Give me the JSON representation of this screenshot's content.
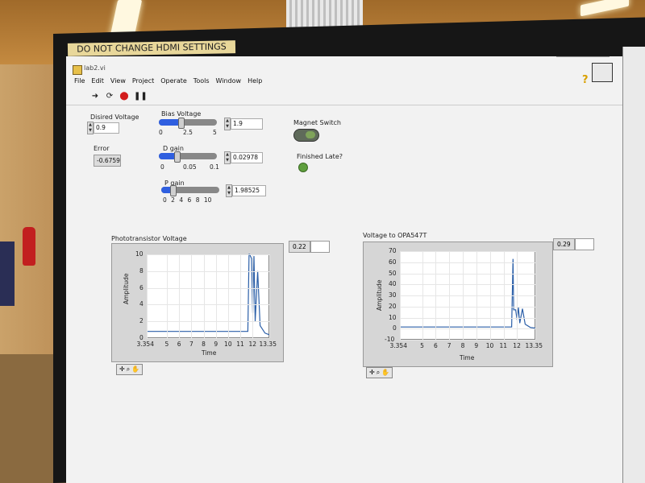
{
  "sticker": "DO NOT CHANGE HDMI SETTINGS",
  "window": {
    "title": "lab2.vi"
  },
  "menu": [
    "File",
    "Edit",
    "View",
    "Project",
    "Operate",
    "Tools",
    "Window",
    "Help"
  ],
  "toolbar": {
    "icons": [
      "run-arrow-icon",
      "run-continuous-icon",
      "abort-icon",
      "pause-icon"
    ]
  },
  "controls": {
    "desired_voltage": {
      "label": "Disired Voltage",
      "value": "0.9"
    },
    "error": {
      "label": "Error",
      "value": "-0.6759"
    },
    "bias_voltage": {
      "label": "Bias Voltage",
      "value": "1.9",
      "ticks": [
        "0",
        "2.5",
        "5"
      ],
      "fraction": 0.38
    },
    "d_gain": {
      "label": "D gain",
      "value": "0.02978",
      "ticks": [
        "0",
        "0.05",
        "0.1"
      ],
      "fraction": 0.3
    },
    "p_gain": {
      "label": "P gain",
      "value": "1.98525",
      "ticks": [
        "0",
        "2",
        "4",
        "6",
        "8",
        "10"
      ],
      "fraction": 0.2
    },
    "magnet_switch": {
      "label": "Magnet Switch",
      "on": true
    },
    "finished_late": {
      "label": "Finished Late?"
    }
  },
  "graphs": [
    {
      "title": "Phototransistor Voltage",
      "legend_value": "0.22",
      "xlabel": "Time",
      "ylabel": "Amplitude",
      "xticks": [
        "3.354",
        "5",
        "6",
        "7",
        "8",
        "9",
        "10",
        "11",
        "12",
        "13.35"
      ],
      "yticks": [
        "10",
        "8",
        "6",
        "4",
        "2",
        "0"
      ]
    },
    {
      "title": "Voltage to OPA547T",
      "legend_value": "0.29",
      "xlabel": "Time",
      "ylabel": "Amplitude",
      "xticks": [
        "3.354",
        "5",
        "6",
        "7",
        "8",
        "9",
        "10",
        "11",
        "12",
        "13.35"
      ],
      "yticks": [
        "70",
        "60",
        "50",
        "40",
        "30",
        "20",
        "10",
        "0",
        "-10"
      ]
    }
  ],
  "chart_data": [
    {
      "type": "line",
      "title": "Phototransistor Voltage",
      "xlabel": "Time",
      "ylabel": "Amplitude",
      "xlim": [
        3.354,
        13.35
      ],
      "ylim": [
        0,
        10
      ],
      "series": [
        {
          "x": [
            3.354,
            11.6,
            11.7,
            11.75,
            11.9,
            12.0,
            12.1,
            12.2,
            12.4,
            12.6,
            13.0,
            13.35
          ],
          "y": [
            0.8,
            0.8,
            10,
            10,
            9.5,
            3,
            9.8,
            2,
            8,
            1.5,
            0.6,
            0.4
          ]
        }
      ]
    },
    {
      "type": "line",
      "title": "Voltage to OPA547T",
      "xlabel": "Time",
      "ylabel": "Amplitude",
      "xlim": [
        3.354,
        13.35
      ],
      "ylim": [
        -10,
        70
      ],
      "series": [
        {
          "x": [
            3.354,
            11.6,
            11.7,
            11.75,
            11.9,
            12.0,
            12.1,
            12.2,
            12.4,
            12.6,
            13.0,
            13.35
          ],
          "y": [
            1.5,
            1.5,
            63,
            17,
            17,
            8,
            19,
            5,
            18,
            4,
            1,
            0.5
          ]
        }
      ]
    }
  ],
  "colors": {
    "plot_line": "#2b5fa8",
    "slider_fill": "#2f5fe0",
    "led": "#5f9f3e"
  }
}
